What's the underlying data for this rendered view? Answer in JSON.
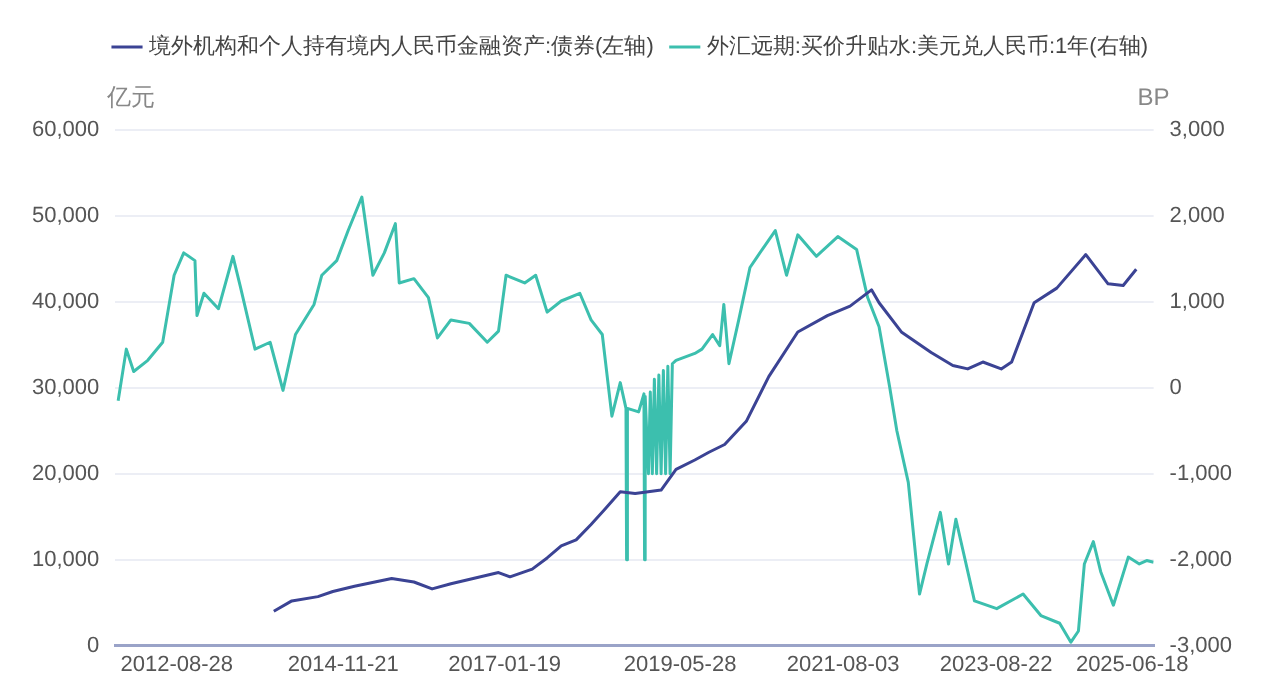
{
  "chart_data": {
    "type": "line",
    "ylabel": "亿元",
    "y2label": "BP",
    "legend": "top",
    "grid": "y",
    "marker": "none",
    "line_style": "solid",
    "xlim": [
      "2011-11-01",
      "2025-10-01"
    ],
    "xticks": [
      "2012-08-28",
      "2014-11-21",
      "2017-01-19",
      "2019-05-28",
      "2021-08-03",
      "2023-08-22",
      "2025-06-18"
    ],
    "ylim": [
      0,
      60000
    ],
    "yticks": [
      0,
      {
        "value": 10000,
        "label": "10,000"
      },
      {
        "value": 20000,
        "label": "20,000"
      },
      {
        "value": 30000,
        "label": "30,000"
      },
      {
        "value": 40000,
        "label": "40,000"
      },
      {
        "value": 50000,
        "label": "50,000"
      },
      {
        "value": 60000,
        "label": "60,000"
      }
    ],
    "y2lim": [
      -3000,
      3000
    ],
    "y2ticks": [
      {
        "value": -3000,
        "label": "-3,000"
      },
      {
        "value": -2000,
        "label": "-2,000"
      },
      {
        "value": -1000,
        "label": "-1,000"
      },
      0,
      {
        "value": 1000,
        "label": "1,000"
      },
      {
        "value": 2000,
        "label": "2,000"
      },
      {
        "value": 3000,
        "label": "3,000"
      }
    ],
    "series": [
      {
        "name": "境外机构和个人持有境内人民币金融资产:债券(左轴)",
        "color": "#3b4394",
        "x": [
          "2013-12-16",
          "2014-03-14",
          "2014-07-20",
          "2014-10-01",
          "2015-01-15",
          "2015-07-16",
          "2015-11-02",
          "2016-01-30",
          "2016-05-01",
          "2016-08-18",
          "2016-12-20",
          "2017-02-14",
          "2017-06-03",
          "2017-08-15",
          "2017-10-23",
          "2018-01-04",
          "2018-03-18",
          "2018-05-30",
          "2018-08-08",
          "2018-10-20",
          "2019-02-24",
          "2019-05-08",
          "2019-08-08",
          "2019-10-16",
          "2020-01-01",
          "2020-04-16",
          "2020-08-04",
          "2020-12-24",
          "2021-05-18",
          "2021-09-06",
          "2021-12-20",
          "2022-01-26",
          "2022-05-15",
          "2022-10-08",
          "2023-01-22",
          "2023-04-05",
          "2023-06-18",
          "2023-09-16",
          "2023-11-06",
          "2024-02-24",
          "2024-06-14",
          "2024-11-03",
          "2025-02-20",
          "2025-05-05",
          "2025-07-08"
        ],
        "values": [
          4000,
          5200,
          5700,
          6300,
          6900,
          7800,
          7400,
          6600,
          7200,
          7800,
          8500,
          8000,
          8900,
          10200,
          11600,
          12300,
          14100,
          16000,
          17900,
          17700,
          18100,
          20500,
          21600,
          22500,
          23400,
          26100,
          31300,
          36500,
          38400,
          39500,
          41400,
          39900,
          36500,
          34100,
          32600,
          32200,
          33000,
          32200,
          33000,
          39900,
          41600,
          45500,
          42100,
          41900,
          43800
        ]
      },
      {
        "name": "外汇远期:买价升贴水:美元兑人民币:1年(右轴)",
        "color": "#3cbfae",
        "axis": "y2",
        "x": [
          "2011-11-15",
          "2011-12-25",
          "2012-01-30",
          "2012-04-08",
          "2012-06-20",
          "2012-08-15",
          "2012-10-01",
          "2012-11-25",
          "2012-12-05",
          "2013-01-08",
          "2013-03-20",
          "2013-05-30",
          "2013-07-05",
          "2013-09-15",
          "2013-11-28",
          "2014-01-30",
          "2014-04-01",
          "2014-07-01",
          "2014-08-08",
          "2014-10-20",
          "2014-12-15",
          "2015-02-20",
          "2015-04-15",
          "2015-06-10",
          "2015-08-03",
          "2015-08-22",
          "2015-11-02",
          "2016-01-12",
          "2016-02-25",
          "2016-05-01",
          "2016-07-30",
          "2016-10-26",
          "2016-12-20",
          "2017-01-26",
          "2017-04-27",
          "2017-06-20",
          "2017-08-15",
          "2017-10-23",
          "2018-01-22",
          "2018-03-18",
          "2018-05-12",
          "2018-06-28",
          "2018-08-08",
          "2018-09-05",
          "2018-09-08",
          "2018-09-12",
          "2018-11-06",
          "2018-12-02",
          "2018-12-05",
          "2018-12-08",
          "2018-12-24",
          "2019-01-02",
          "2019-01-12",
          "2019-01-22",
          "2019-02-02",
          "2019-02-13",
          "2019-02-24",
          "2019-03-07",
          "2019-03-18",
          "2019-03-29",
          "2019-04-09",
          "2019-04-20",
          "2019-05-08",
          "2019-08-08",
          "2019-09-12",
          "2019-11-03",
          "2019-12-08",
          "2019-12-28",
          "2020-01-22",
          "2020-03-10",
          "2020-05-04",
          "2020-06-10",
          "2020-09-05",
          "2020-10-30",
          "2020-12-24",
          "2021-03-25",
          "2021-07-08",
          "2021-10-08",
          "2021-12-01",
          "2022-01-26",
          "2022-03-18",
          "2022-04-23",
          "2022-06-18",
          "2022-08-12",
          "2022-09-17",
          "2022-11-22",
          "2023-01-01",
          "2023-02-06",
          "2023-05-08",
          "2023-08-25",
          "2024-01-01",
          "2024-03-28",
          "2024-06-28",
          "2024-08-22",
          "2024-09-28",
          "2024-10-27",
          "2024-12-10",
          "2025-01-15",
          "2025-03-18",
          "2025-05-30",
          "2025-07-23",
          "2025-08-28",
          "2025-10-01"
        ],
        "values": [
          -150,
          450,
          190,
          320,
          530,
          1310,
          1570,
          1480,
          840,
          1100,
          920,
          1530,
          1180,
          450,
          530,
          -30,
          620,
          970,
          1310,
          1480,
          1830,
          2220,
          1310,
          1570,
          1910,
          1220,
          1270,
          1050,
          580,
          790,
          750,
          530,
          660,
          1310,
          1220,
          1310,
          880,
          1010,
          1100,
          790,
          620,
          -330,
          60,
          -240,
          -2000,
          -240,
          -280,
          -70,
          -2000,
          -100,
          -1000,
          -50,
          -1000,
          100,
          -1000,
          150,
          -1000,
          200,
          -1000,
          250,
          -1000,
          280,
          320,
          400,
          450,
          620,
          490,
          970,
          280,
          790,
          1400,
          1530,
          1830,
          1310,
          1780,
          1530,
          1760,
          1610,
          1050,
          710,
          20,
          -500,
          -1100,
          -2400,
          -2050,
          -1450,
          -2050,
          -1530,
          -2480,
          -2570,
          -2400,
          -2650,
          -2740,
          -2960,
          -2830,
          -2050,
          -1790,
          -2140,
          -2530,
          -1970,
          -2050,
          -2010,
          -2030
        ]
      }
    ]
  }
}
